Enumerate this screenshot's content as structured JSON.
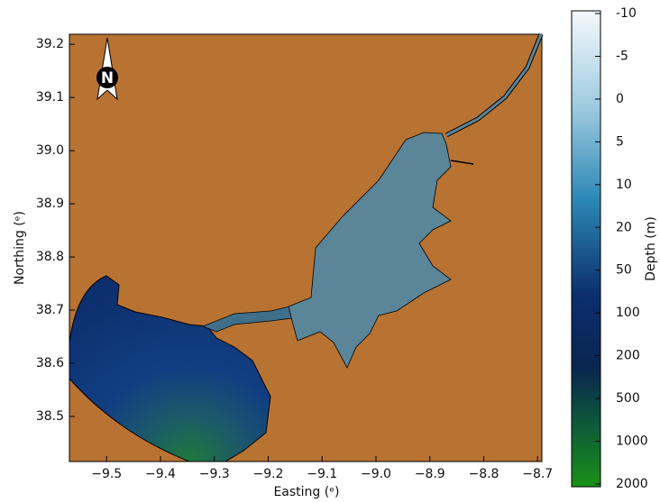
{
  "map": {
    "xlabel": "Easting (ᵉ)",
    "ylabel": "Northing (ᵉ)",
    "north_label": "N",
    "xlim": [
      -9.569,
      -8.692
    ],
    "ylim": [
      38.415,
      39.219
    ],
    "xticks": [
      {
        "value": -9.5,
        "label": "−9.5"
      },
      {
        "value": -9.4,
        "label": "−9.4"
      },
      {
        "value": -9.3,
        "label": "−9.3"
      },
      {
        "value": -9.2,
        "label": "−9.2"
      },
      {
        "value": -9.1,
        "label": "−9.1"
      },
      {
        "value": -9.0,
        "label": "−9.0"
      },
      {
        "value": -8.9,
        "label": "−8.9"
      },
      {
        "value": -8.8,
        "label": "−8.8"
      },
      {
        "value": -8.7,
        "label": "−8.7"
      }
    ],
    "yticks": [
      38.5,
      38.6,
      38.7,
      38.8,
      38.9,
      {
        "value": 39.0,
        "label": "39.0"
      },
      39.1,
      39.2
    ]
  },
  "colorbar": {
    "label": "Depth (m)",
    "ticks": [
      -10,
      -5,
      0,
      5,
      10,
      20,
      50,
      100,
      200,
      500,
      1000,
      2000
    ]
  }
}
